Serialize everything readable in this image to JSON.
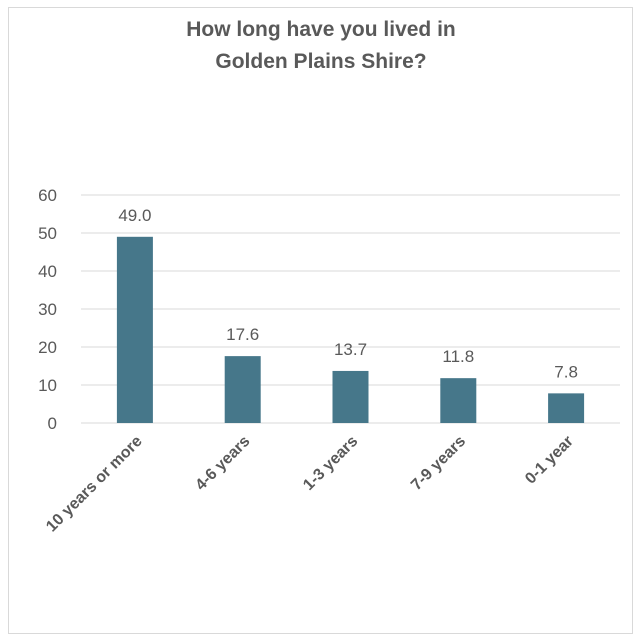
{
  "chart_data": {
    "type": "bar",
    "title_lines": [
      "How long have you lived in",
      "Golden Plains Shire?"
    ],
    "categories": [
      "10 years or more",
      "4-6 years",
      "1-3 years",
      "7-9 years",
      "0-1 year"
    ],
    "values": [
      49.0,
      17.6,
      13.7,
      11.8,
      7.8
    ],
    "value_labels": [
      "49.0",
      "17.6",
      "13.7",
      "11.8",
      "7.8"
    ],
    "ylim": [
      0,
      60
    ],
    "yticks": [
      0,
      10,
      20,
      30,
      40,
      50,
      60
    ],
    "ytick_labels": [
      "0",
      "10",
      "20",
      "30",
      "40",
      "50",
      "60"
    ],
    "grid": true,
    "legend": "none",
    "bar_color": "#46778a",
    "grid_color": "#d9d9d9",
    "text_color": "#595959"
  }
}
